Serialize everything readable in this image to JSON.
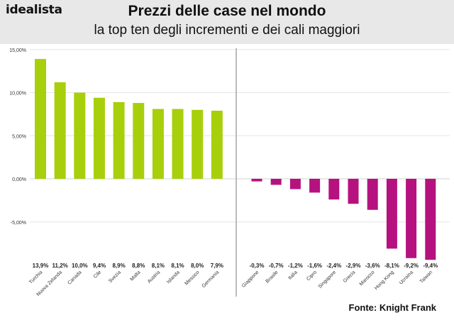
{
  "header": {
    "logo": "idealista",
    "title": "Prezzi delle case nel mondo",
    "subtitle": "la top ten degli incrementi e dei cali maggiori"
  },
  "source": "Fonte: Knight Frank",
  "colors": {
    "increase": "#a8cf0b",
    "decrease": "#b5127f",
    "header_bg": "#e8e8e8",
    "divider": "#bbbbbb",
    "grid": "#e6e6e6"
  },
  "chart_data": {
    "type": "bar",
    "ylim": [
      -9.4,
      15
    ],
    "yticks": [
      {
        "value": 15,
        "label": "15,00%"
      },
      {
        "value": 10,
        "label": "10,00%"
      },
      {
        "value": 5,
        "label": "5,00%"
      },
      {
        "value": 0,
        "label": "0,00%"
      },
      {
        "value": -5,
        "label": "-5,00%"
      }
    ],
    "grid": true,
    "categories": [
      "Turchia",
      "Nuova Zelanda",
      "Canada",
      "Cile",
      "Svezia",
      "Malta",
      "Austria",
      "Islanda",
      "Messico",
      "Germania",
      "Giappone",
      "Brasile",
      "Italia",
      "Cipro",
      "Singapore",
      "Grecia",
      "Marocco",
      "Hong Kong",
      "Ucraina",
      "Taiwan"
    ],
    "values": [
      13.9,
      11.2,
      10.0,
      9.4,
      8.9,
      8.8,
      8.1,
      8.1,
      8.0,
      7.9,
      -0.3,
      -0.7,
      -1.2,
      -1.6,
      -2.4,
      -2.9,
      -3.6,
      -8.1,
      -9.2,
      -9.4
    ],
    "value_labels": [
      "13,9%",
      "11,2%",
      "10,0%",
      "9,4%",
      "8,9%",
      "8,8%",
      "8,1%",
      "8,1%",
      "8,0%",
      "7,9%",
      "-0,3%",
      "-0,7%",
      "-1,2%",
      "-1,6%",
      "-2,4%",
      "-2,9%",
      "-3,6%",
      "-8,1%",
      "-9,2%",
      "-9,4%"
    ]
  }
}
